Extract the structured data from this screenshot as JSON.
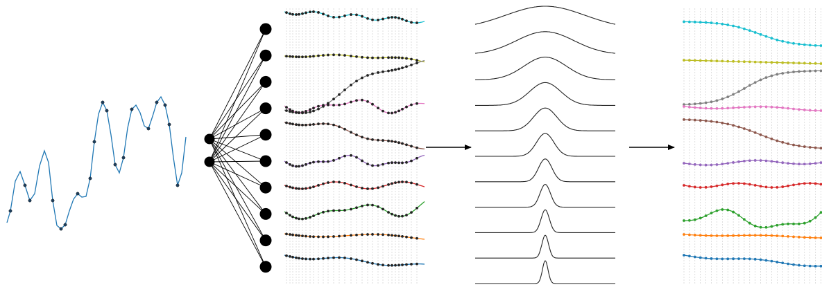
{
  "series_colors": [
    "#1f77b4",
    "#ff7f0e",
    "#2ca02c",
    "#d62728",
    "#9467bd",
    "#8c564b",
    "#e377c2",
    "#7f7f7f",
    "#bcbd22",
    "#17becf"
  ],
  "input_signal_color": "#1f77b4",
  "node_color": "#000000",
  "network": {
    "input_nodes": 2,
    "output_nodes": 10
  },
  "gaussian_kernel_count": 11,
  "arrow_count": 2
}
